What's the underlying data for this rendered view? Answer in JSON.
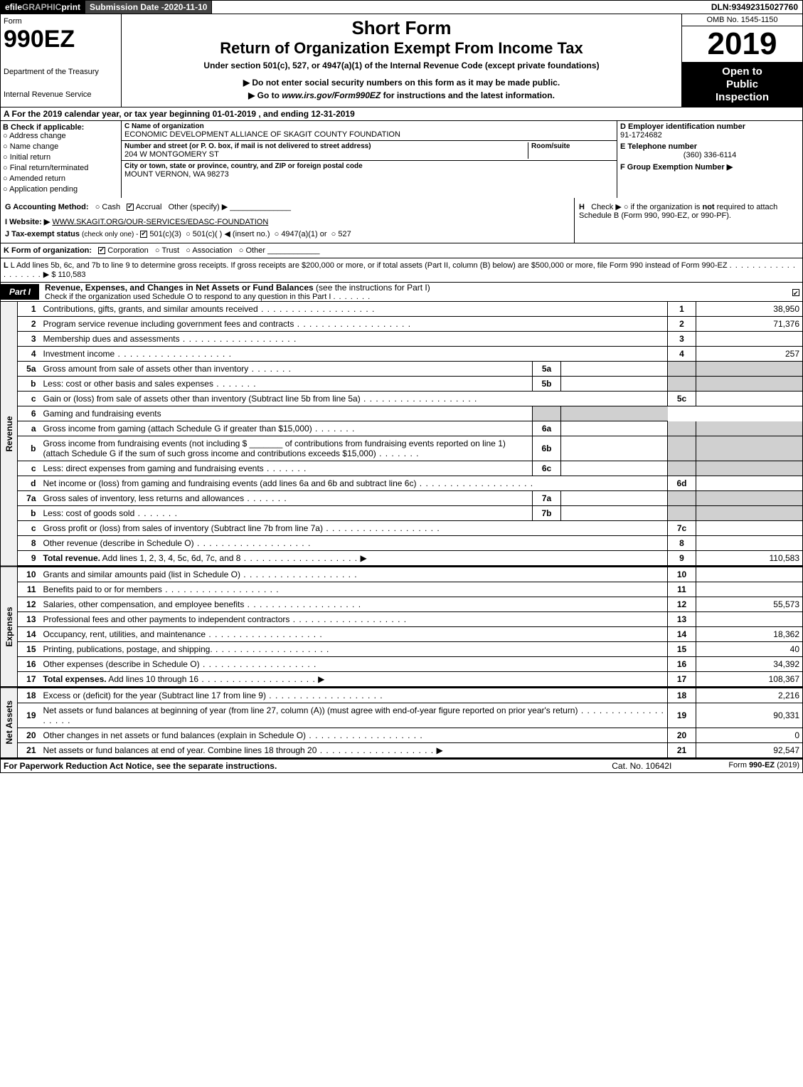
{
  "topbar": {
    "efile_prefix": "efile ",
    "efile_graphic": "GRAPHIC",
    "efile_print": " print",
    "submission_label": "Submission Date - ",
    "submission_date": "2020-11-10",
    "dln_label": "DLN: ",
    "dln": "93492315027760"
  },
  "header": {
    "form_label": "Form",
    "form_number": "990EZ",
    "dept1": "Department of the Treasury",
    "dept2": "Internal Revenue Service",
    "short_form": "Short Form",
    "return_title": "Return of Organization Exempt From Income Tax",
    "under": "Under section 501(c), 527, or 4947(a)(1) of the Internal Revenue Code (except private foundations)",
    "ssn_note": "▶ Do not enter social security numbers on this form as it may be made public.",
    "goto_prefix": "▶ Go to ",
    "goto_link": "www.irs.gov/Form990EZ",
    "goto_suffix": " for instructions and the latest information.",
    "omb": "OMB No. 1545-1150",
    "year": "2019",
    "open1": "Open to",
    "open2": "Public",
    "open3": "Inspection"
  },
  "row_a": "A  For the 2019 calendar year, or tax year beginning 01-01-2019 , and ending 12-31-2019",
  "col_b": {
    "label": "B  Check if applicable:",
    "items": [
      "Address change",
      "Name change",
      "Initial return",
      "Final return/terminated",
      "Amended return",
      "Application pending"
    ]
  },
  "col_c": {
    "name_lbl": "C Name of organization",
    "name": "ECONOMIC DEVELOPMENT ALLIANCE OF SKAGIT COUNTY FOUNDATION",
    "street_lbl": "Number and street (or P. O. box, if mail is not delivered to street address)",
    "street": "204 W MONTGOMERY ST",
    "room_lbl": "Room/suite",
    "city_lbl": "City or town, state or province, country, and ZIP or foreign postal code",
    "city": "MOUNT VERNON, WA  98273"
  },
  "col_de": {
    "d_lbl": "D Employer identification number",
    "ein": "91-1724682",
    "e_lbl": "E Telephone number",
    "phone": "(360) 336-6114",
    "f_lbl": "F Group Exemption Number   ▶"
  },
  "row_g": {
    "acc_lbl": "G Accounting Method:",
    "acc_cash": "Cash",
    "acc_accrual": "Accrual",
    "acc_other": "Other (specify) ▶",
    "ws_lbl": "I Website: ▶",
    "ws": "WWW.SKAGIT.ORG/OUR-SERVICES/EDASC-FOUNDATION",
    "tax_lbl": "J Tax-exempt status",
    "tax_note": " (check only one) - ",
    "tax_501c3": "501(c)(3)",
    "tax_501c": "501(c)(  ) ◀ (insert no.)",
    "tax_4947": "4947(a)(1) or",
    "tax_527": "527",
    "h_lbl": "H",
    "h_text": "Check ▶  ○  if the organization is ",
    "h_not": "not",
    "h_text2": " required to attach Schedule B (Form 990, 990-EZ, or 990-PF)."
  },
  "row_k": {
    "lbl": "K Form of organization:",
    "corp": "Corporation",
    "trust": "Trust",
    "assoc": "Association",
    "other": "Other"
  },
  "row_l": {
    "text": "L Add lines 5b, 6c, and 7b to line 9 to determine gross receipts. If gross receipts are $200,000 or more, or if total assets (Part II, column (B) below) are $500,000 or more, file Form 990 instead of Form 990-EZ",
    "arrow": "▶ $ ",
    "amount": "110,583"
  },
  "part1": {
    "tab": "Part I",
    "title": "Revenue, Expenses, and Changes in Net Assets or Fund Balances",
    "title_note": " (see the instructions for Part I)",
    "check_note": "Check if the organization used Schedule O to respond to any question in this Part I"
  },
  "sidelabels": {
    "revenue": "Revenue",
    "expenses": "Expenses",
    "netassets": "Net Assets"
  },
  "lines": [
    {
      "n": "1",
      "d": "Contributions, gifts, grants, and similar amounts received",
      "ln": "1",
      "v": "38,950"
    },
    {
      "n": "2",
      "d": "Program service revenue including government fees and contracts",
      "ln": "2",
      "v": "71,376"
    },
    {
      "n": "3",
      "d": "Membership dues and assessments",
      "ln": "3",
      "v": ""
    },
    {
      "n": "4",
      "d": "Investment income",
      "ln": "4",
      "v": "257"
    },
    {
      "n": "5a",
      "d": "Gross amount from sale of assets other than inventory",
      "il": "5a",
      "iv": "",
      "shade": true
    },
    {
      "n": "b",
      "d": "Less: cost or other basis and sales expenses",
      "il": "5b",
      "iv": "",
      "shade": true
    },
    {
      "n": "c",
      "d": "Gain or (loss) from sale of assets other than inventory (Subtract line 5b from line 5a)",
      "ln": "5c",
      "v": ""
    },
    {
      "n": "6",
      "d": "Gaming and fundraising events",
      "shade_full": true
    },
    {
      "n": "a",
      "d": "Gross income from gaming (attach Schedule G if greater than $15,000)",
      "il": "6a",
      "iv": "",
      "shade": true
    },
    {
      "n": "b",
      "d": "Gross income from fundraising events (not including $ _______ of contributions from fundraising events reported on line 1) (attach Schedule G if the sum of such gross income and contributions exceeds $15,000)",
      "il": "6b",
      "iv": "",
      "shade": true
    },
    {
      "n": "c",
      "d": "Less: direct expenses from gaming and fundraising events",
      "il": "6c",
      "iv": "",
      "shade": true
    },
    {
      "n": "d",
      "d": "Net income or (loss) from gaming and fundraising events (add lines 6a and 6b and subtract line 6c)",
      "ln": "6d",
      "v": ""
    },
    {
      "n": "7a",
      "d": "Gross sales of inventory, less returns and allowances",
      "il": "7a",
      "iv": "",
      "shade": true
    },
    {
      "n": "b",
      "d": "Less: cost of goods sold",
      "il": "7b",
      "iv": "",
      "shade": true
    },
    {
      "n": "c",
      "d": "Gross profit or (loss) from sales of inventory (Subtract line 7b from line 7a)",
      "ln": "7c",
      "v": ""
    },
    {
      "n": "8",
      "d": "Other revenue (describe in Schedule O)",
      "ln": "8",
      "v": ""
    },
    {
      "n": "9",
      "d": "Total revenue. Add lines 1, 2, 3, 4, 5c, 6d, 7c, and 8",
      "ln": "9",
      "v": "110,583",
      "bold": true,
      "arrow": true
    }
  ],
  "exp_lines": [
    {
      "n": "10",
      "d": "Grants and similar amounts paid (list in Schedule O)",
      "ln": "10",
      "v": ""
    },
    {
      "n": "11",
      "d": "Benefits paid to or for members",
      "ln": "11",
      "v": ""
    },
    {
      "n": "12",
      "d": "Salaries, other compensation, and employee benefits",
      "ln": "12",
      "v": "55,573"
    },
    {
      "n": "13",
      "d": "Professional fees and other payments to independent contractors",
      "ln": "13",
      "v": ""
    },
    {
      "n": "14",
      "d": "Occupancy, rent, utilities, and maintenance",
      "ln": "14",
      "v": "18,362"
    },
    {
      "n": "15",
      "d": "Printing, publications, postage, and shipping.",
      "ln": "15",
      "v": "40"
    },
    {
      "n": "16",
      "d": "Other expenses (describe in Schedule O)",
      "ln": "16",
      "v": "34,392"
    },
    {
      "n": "17",
      "d": "Total expenses. Add lines 10 through 16",
      "ln": "17",
      "v": "108,367",
      "bold": true,
      "arrow": true
    }
  ],
  "net_lines": [
    {
      "n": "18",
      "d": "Excess or (deficit) for the year (Subtract line 17 from line 9)",
      "ln": "18",
      "v": "2,216"
    },
    {
      "n": "19",
      "d": "Net assets or fund balances at beginning of year (from line 27, column (A)) (must agree with end-of-year figure reported on prior year's return)",
      "ln": "19",
      "v": "90,331"
    },
    {
      "n": "20",
      "d": "Other changes in net assets or fund balances (explain in Schedule O)",
      "ln": "20",
      "v": "0"
    },
    {
      "n": "21",
      "d": "Net assets or fund balances at end of year. Combine lines 18 through 20",
      "ln": "21",
      "v": "92,547",
      "arrow": true
    }
  ],
  "footer": {
    "left": "For Paperwork Reduction Act Notice, see the separate instructions.",
    "center": "Cat. No. 10642I",
    "right_prefix": "Form ",
    "right_form": "990-EZ",
    "right_suffix": " (2019)"
  }
}
